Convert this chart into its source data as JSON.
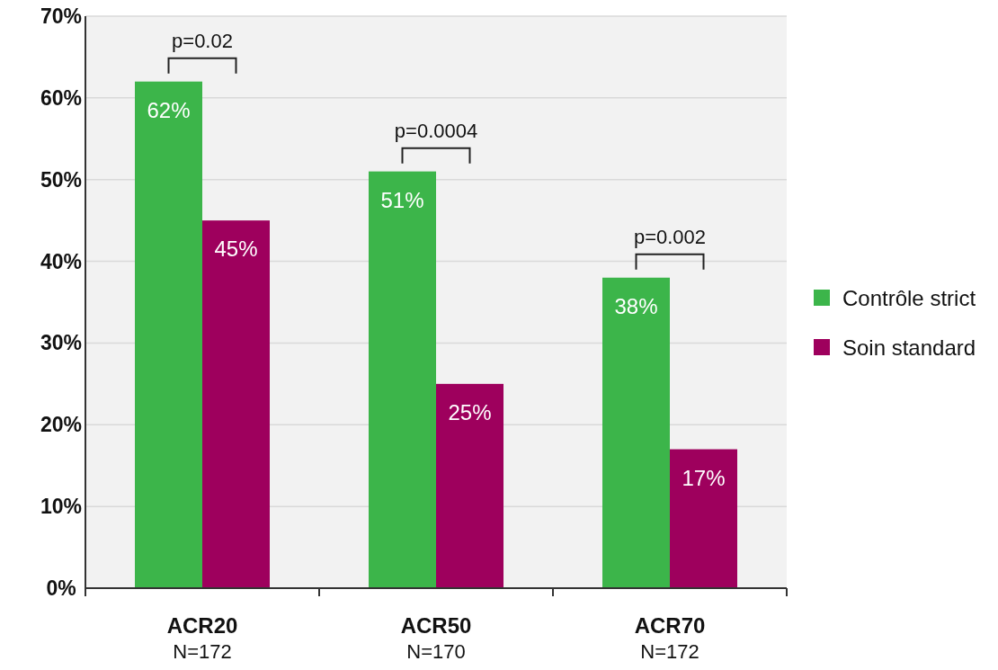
{
  "chart_data": {
    "type": "bar",
    "categories": [
      "ACR20\nN=172",
      "ACR50\nN=170",
      "ACR70\nN=172"
    ],
    "series": [
      {
        "name": "Contrôle strict",
        "color": "#3cb54a",
        "values": [
          62,
          51,
          38
        ],
        "value_labels": [
          "62%",
          "51%",
          "38%"
        ]
      },
      {
        "name": "Soin standard",
        "color": "#9e005d",
        "values": [
          45,
          25,
          17
        ],
        "value_labels": [
          "45%",
          "25%",
          "17%"
        ]
      }
    ],
    "ylim": [
      0,
      70
    ],
    "yticks": [
      {
        "value": 0,
        "label": "0%"
      },
      {
        "value": 10,
        "label": "10%"
      },
      {
        "value": 20,
        "label": "20%"
      },
      {
        "value": 30,
        "label": "30%"
      },
      {
        "value": 40,
        "label": "40%"
      },
      {
        "value": 50,
        "label": "50%"
      },
      {
        "value": 60,
        "label": "60%"
      },
      {
        "value": 70,
        "label": "70%"
      }
    ],
    "grid": "y",
    "legend": "right",
    "annotations": [
      "p=0.02",
      "p=0.0004",
      "p=0.002"
    ]
  }
}
